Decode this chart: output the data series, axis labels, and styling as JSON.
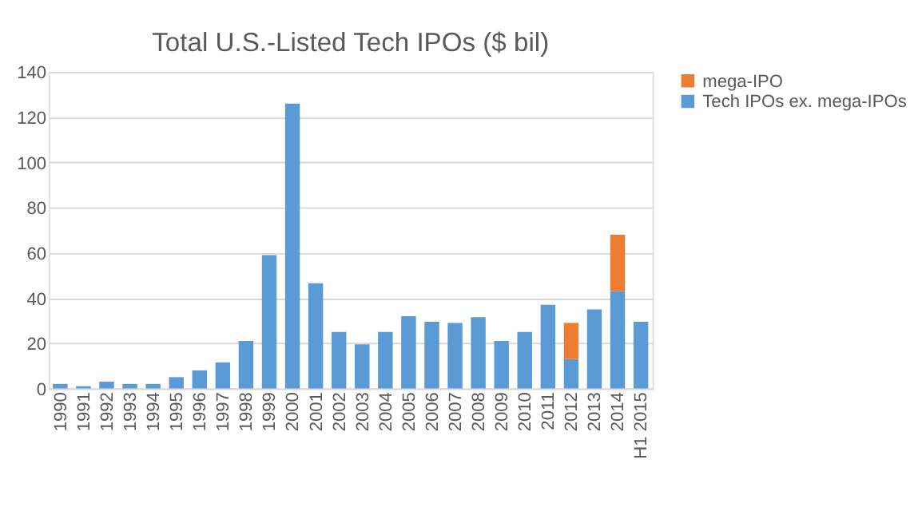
{
  "chart_data": {
    "type": "bar",
    "title": "Total U.S.-Listed Tech IPOs ($ bil)",
    "stacked": true,
    "categories": [
      "1990",
      "1991",
      "1992",
      "1993",
      "1994",
      "1995",
      "1996",
      "1997",
      "1998",
      "1999",
      "2000",
      "2001",
      "2002",
      "2003",
      "2004",
      "2005",
      "2006",
      "2007",
      "2008",
      "2009",
      "2010",
      "2011",
      "2012",
      "2013",
      "2014",
      "H1 2015"
    ],
    "series": [
      {
        "name": "Tech IPOs ex. mega-IPOs",
        "color": "#5b9bd5",
        "values": [
          2,
          1,
          3,
          2,
          2,
          5,
          8,
          11.5,
          21,
          59,
          126,
          46.5,
          25,
          19.5,
          25,
          32,
          29.5,
          29,
          31.5,
          21,
          25,
          37,
          13,
          35,
          43,
          29.5
        ]
      },
      {
        "name": "mega-IPO",
        "color": "#ed7d31",
        "values": [
          null,
          null,
          null,
          null,
          null,
          null,
          null,
          null,
          null,
          null,
          null,
          null,
          null,
          null,
          null,
          null,
          null,
          null,
          null,
          null,
          null,
          null,
          16,
          null,
          25,
          null
        ]
      }
    ],
    "ylim": [
      0,
      140
    ],
    "yticks": [
      0,
      20,
      40,
      60,
      80,
      100,
      120,
      140
    ],
    "grid": "y",
    "legend": "right"
  }
}
